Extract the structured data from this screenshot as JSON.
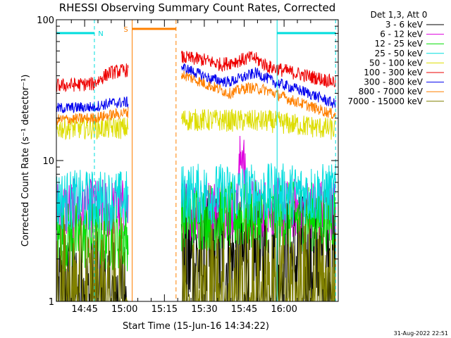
{
  "chart_data": {
    "type": "line",
    "title": "RHESSI Observing Summary Count Rates, Corrected",
    "xlabel": "Start Time (15-Jun-16 14:34:22)",
    "ylabel": "Corrected Count Rate (s⁻¹ detector⁻¹)",
    "y_scale": "log",
    "ylim": [
      1,
      100
    ],
    "x_unit": "minutes after 14:34:22",
    "xlim": [
      0,
      106
    ],
    "x_ticks": [
      {
        "value": 10.63,
        "label": "14:45"
      },
      {
        "value": 25.63,
        "label": "15:00"
      },
      {
        "value": 40.63,
        "label": "15:15"
      },
      {
        "value": 55.63,
        "label": "15:30"
      },
      {
        "value": 70.63,
        "label": "15:45"
      },
      {
        "value": 85.63,
        "label": "16:00"
      }
    ],
    "y_ticks": [
      {
        "value": 1,
        "label": "1"
      },
      {
        "value": 10,
        "label": "10"
      },
      {
        "value": 100,
        "label": "100"
      }
    ],
    "legend": {
      "header": "Det 1,3, Att 0",
      "placement": "right"
    },
    "series": [
      {
        "name": "3 - 6 keV",
        "color": "#000000",
        "segments": [
          {
            "x": [
              0,
              27
            ],
            "y": [
              1,
              1
            ]
          },
          {
            "x": [
              47,
              105
            ],
            "y": [
              1.9,
              1.9
            ]
          }
        ],
        "noise": 0.5
      },
      {
        "name": "6 - 12 keV",
        "color": "#dd00dd",
        "segments": [
          {
            "x": [
              0,
              27
            ],
            "y": [
              4.5,
              4.5
            ]
          },
          {
            "x": [
              47,
              68,
              69.8,
              71.5,
              105
            ],
            "y": [
              4.5,
              4.6,
              13,
              4.6,
              4.5
            ]
          }
        ],
        "noise": 0.22
      },
      {
        "name": "12 - 25 keV",
        "color": "#00dd00",
        "segments": [
          {
            "x": [
              0,
              27
            ],
            "y": [
              2.9,
              2.9
            ]
          },
          {
            "x": [
              47,
              105
            ],
            "y": [
              4.0,
              4.0
            ]
          }
        ],
        "noise": 0.25
      },
      {
        "name": "25 - 50 keV",
        "color": "#00dddd",
        "segments": [
          {
            "x": [
              0,
              27
            ],
            "y": [
              5.2,
              5.2
            ]
          },
          {
            "x": [
              47,
              105
            ],
            "y": [
              5.8,
              5.8
            ]
          }
        ],
        "noise": 0.22
      },
      {
        "name": "50 - 100 keV",
        "color": "#dddd00",
        "segments": [
          {
            "x": [
              0,
              27
            ],
            "y": [
              17,
              17
            ]
          },
          {
            "x": [
              47,
              80,
              105
            ],
            "y": [
              19.5,
              19,
              16.5
            ]
          }
        ],
        "noise": 0.08
      },
      {
        "name": "100 - 300 keV",
        "color": "#ee0000",
        "segments": [
          {
            "x": [
              0,
              14,
              20,
              27
            ],
            "y": [
              34,
              35,
              42,
              44
            ]
          },
          {
            "x": [
              47,
              55,
              62,
              70,
              74,
              80,
              94,
              105
            ],
            "y": [
              54,
              52,
              48,
              52,
              54,
              46,
              40,
              36
            ]
          }
        ],
        "noise": 0.05
      },
      {
        "name": "300 - 800 keV",
        "color": "#0000ee",
        "segments": [
          {
            "x": [
              0,
              14,
              20,
              27
            ],
            "y": [
              23.5,
              24,
              25.5,
              26
            ]
          },
          {
            "x": [
              47,
              58,
              65,
              72,
              75,
              82,
              95,
              105
            ],
            "y": [
              46,
              38,
              36,
              40,
              42,
              36,
              30,
              25
            ]
          }
        ],
        "noise": 0.04
      },
      {
        "name": "800 - 7000 keV",
        "color": "#ff8000",
        "segments": [
          {
            "x": [
              0,
              14,
              20,
              27
            ],
            "y": [
              19.5,
              20,
              21,
              22
            ]
          },
          {
            "x": [
              47,
              56,
              65,
              72,
              78,
              88,
              96,
              105
            ],
            "y": [
              41,
              35,
              30,
              33,
              32,
              27,
              24,
              21
            ]
          }
        ],
        "noise": 0.04
      },
      {
        "name": "7000 - 15000 keV",
        "color": "#808000",
        "segments": [
          {
            "x": [
              0,
              27
            ],
            "y": [
              1,
              1
            ]
          },
          {
            "x": [
              47,
              105
            ],
            "y": [
              1,
              1
            ]
          }
        ],
        "noise": 0.6
      }
    ],
    "annotations": {
      "night_bars": {
        "color": "#00dddd",
        "label": "N",
        "spans": [
          [
            0,
            14.3
          ],
          [
            83,
            105
          ]
        ]
      },
      "saa_bar": {
        "color": "#ff8000",
        "label": "S",
        "span": [
          28.5,
          45
        ]
      }
    }
  },
  "timestamp": "31-Aug-2022 22:51"
}
